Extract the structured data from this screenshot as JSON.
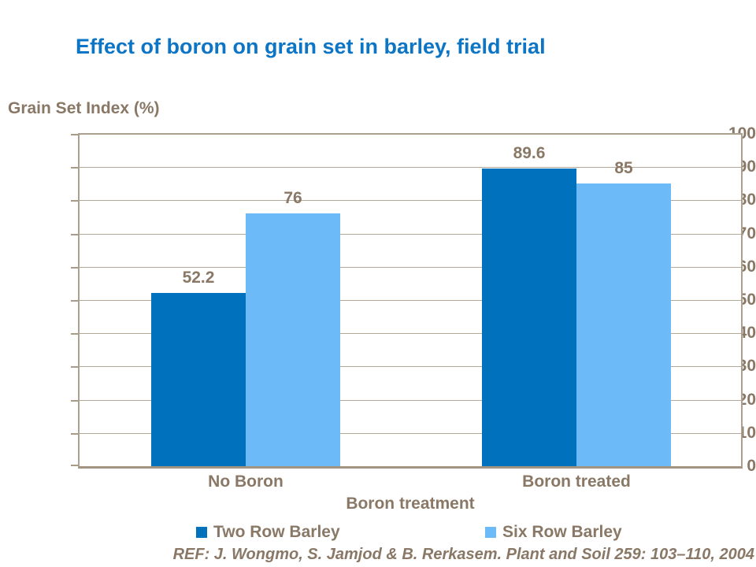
{
  "chart_data": {
    "type": "bar",
    "title": "Effect of boron on grain set in barley, field trial",
    "categories": [
      "No Boron",
      "Boron treated"
    ],
    "series": [
      {
        "name": "Two Row Barley",
        "values": [
          52.2,
          89.6
        ],
        "labels": [
          "52.2",
          "89.6"
        ],
        "color": "#0071bc"
      },
      {
        "name": "Six Row Barley",
        "values": [
          76,
          85
        ],
        "labels": [
          "76",
          "85"
        ],
        "color": "#6cbaf7"
      }
    ],
    "xlabel": "Boron treatment",
    "ylabel": "Grain Set Index (%)",
    "ylim": [
      0,
      100
    ],
    "y_ticks": [
      "100",
      "90",
      "80",
      "70",
      "60",
      "50",
      "40",
      "30",
      "20",
      "10",
      "0"
    ],
    "grid": true,
    "legend_position": "bottom",
    "colors": {
      "title_blue": "#0d75c5",
      "axis_text_brown": "#8a7866",
      "gridline_tan": "#b4a896",
      "border_tan": "#aca08e"
    }
  },
  "footer": {
    "reference": "REF: J. Wongmo, S. Jamjod & B. Rerkasem. Plant and Soil 259: 103–110, 2004"
  }
}
